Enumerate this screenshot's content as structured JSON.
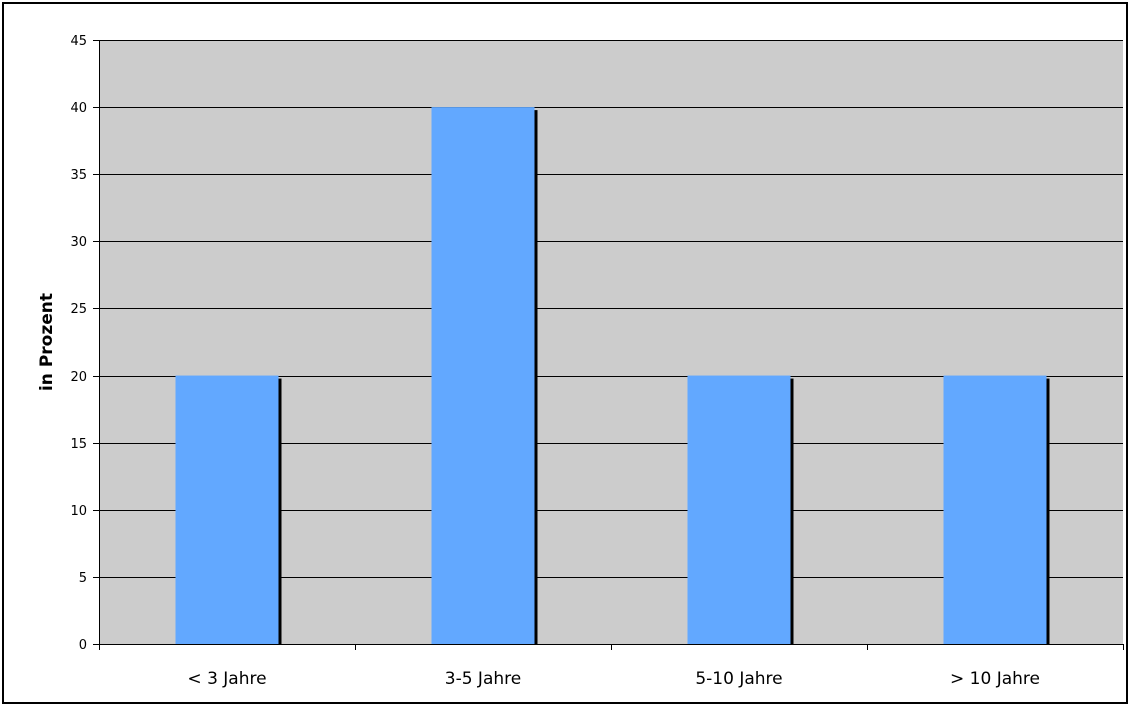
{
  "chart_data": {
    "type": "bar",
    "title": "",
    "xlabel": "",
    "ylabel": "in Prozent",
    "categories": [
      "< 3 Jahre",
      "3-5 Jahre",
      "5-10 Jahre",
      "> 10 Jahre"
    ],
    "values": [
      20,
      40,
      20,
      20
    ],
    "ylim": [
      0,
      45
    ],
    "yticks": [
      0,
      5,
      10,
      15,
      20,
      25,
      30,
      35,
      40,
      45
    ],
    "grid": true,
    "legend": "none",
    "colors": {
      "bar": "#62a8ff",
      "bar_shadow": "#000000",
      "plot_background": "#cccccc",
      "gridline": "#000000"
    }
  }
}
